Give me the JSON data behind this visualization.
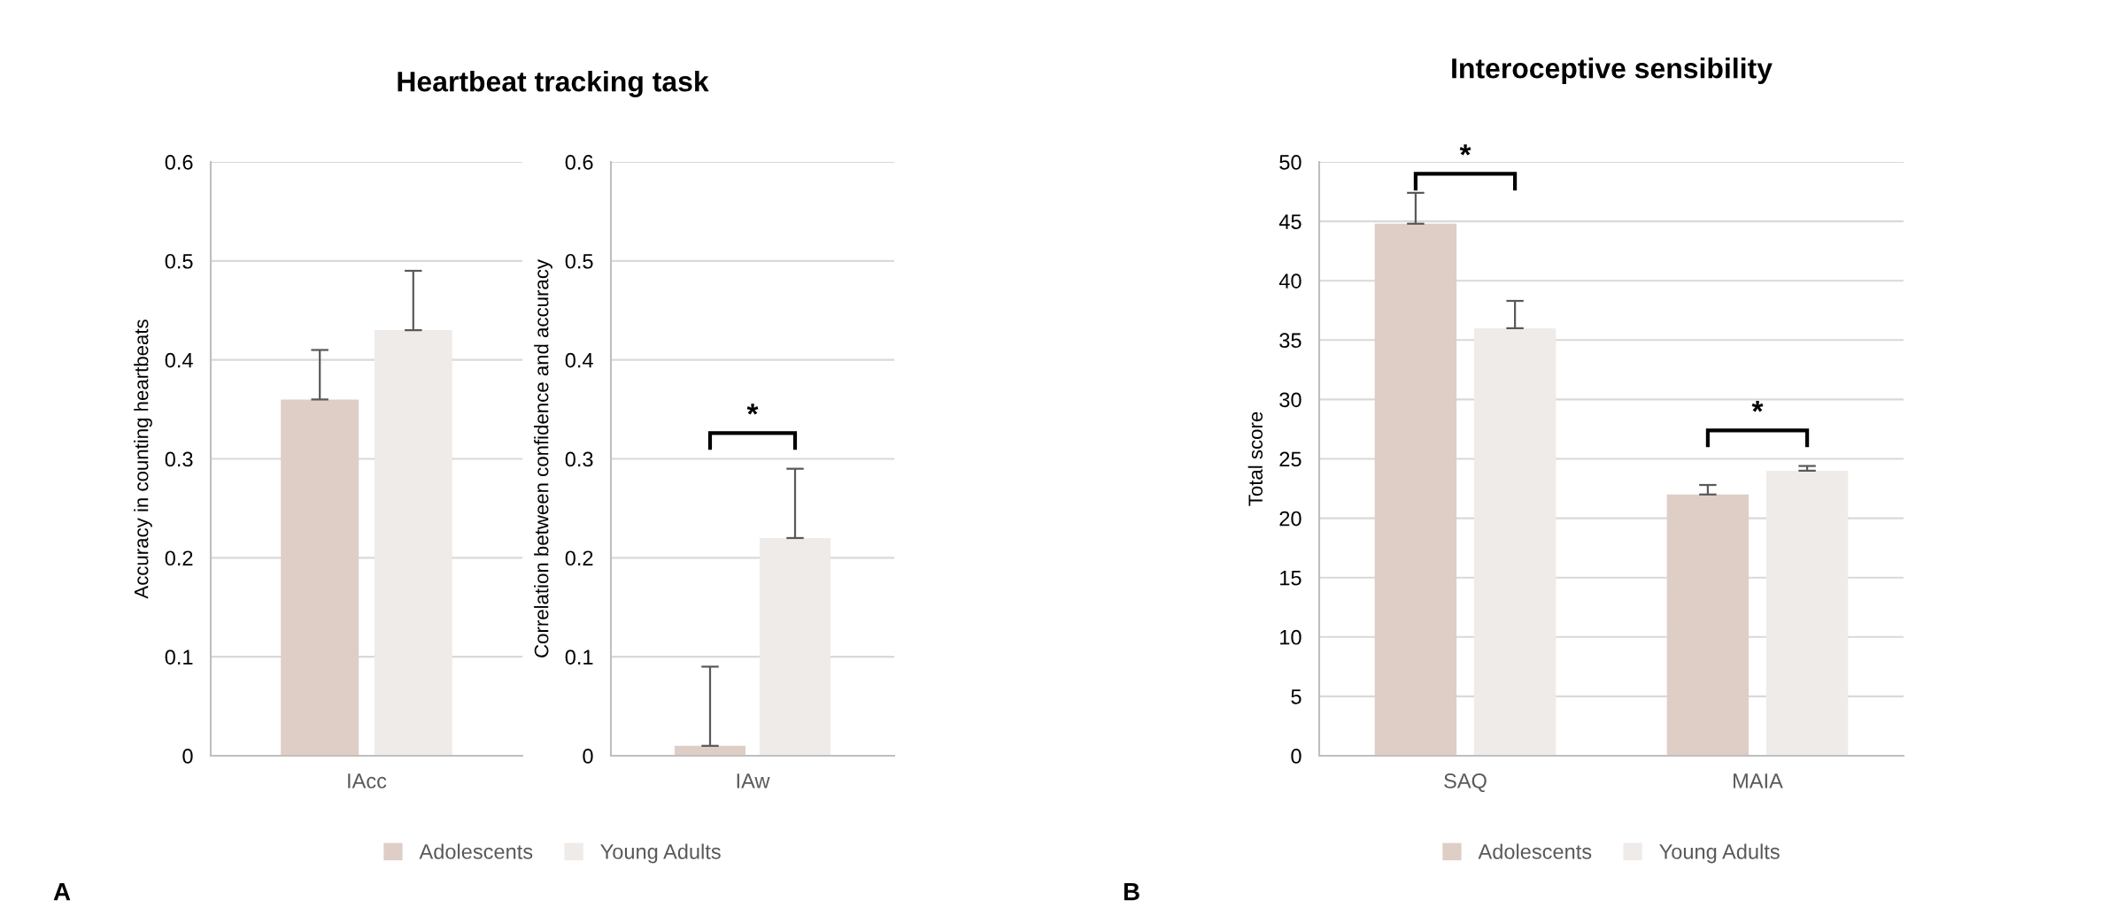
{
  "chart_data": [
    {
      "type": "bar",
      "title": "Heartbeat tracking task",
      "ylabel": "Accuracy in counting heartbeats",
      "categories": [
        "IAcc"
      ],
      "ylim": [
        0,
        0.6
      ],
      "yticks": [
        0,
        0.1,
        0.2,
        0.3,
        0.4,
        0.5,
        0.6
      ],
      "grid": "y",
      "legend": "bottom",
      "series": [
        {
          "name": "Adolescents",
          "color": "#dfcec6",
          "values": [
            0.36
          ],
          "errors": [
            [
              0.36,
              0.41
            ]
          ]
        },
        {
          "name": "Young Adults",
          "color": "#efebe8",
          "values": [
            0.43
          ],
          "errors": [
            [
              0.43,
              0.49
            ]
          ]
        }
      ]
    },
    {
      "type": "bar",
      "ylabel": "Correlation between confidence and accuracy",
      "categories": [
        "IAw"
      ],
      "ylim": [
        0,
        0.6
      ],
      "yticks": [
        0,
        0.1,
        0.2,
        0.3,
        0.4,
        0.5,
        0.6
      ],
      "grid": "y",
      "series": [
        {
          "color": "#dfcec6",
          "values": [
            0.01
          ],
          "errors": [
            [
              0.01,
              0.09
            ]
          ]
        },
        {
          "color": "#efebe8",
          "values": [
            0.22
          ],
          "errors": [
            [
              0.22,
              0.29
            ]
          ]
        }
      ],
      "annotations": [
        "*",
        "A"
      ]
    },
    {
      "type": "bar",
      "title": "Interoceptive sensibility",
      "ylabel": "Total score",
      "categories": [
        "SAQ",
        "MAIA"
      ],
      "ylim": [
        0,
        50
      ],
      "yticks": [
        0,
        5,
        10,
        15,
        20,
        25,
        30,
        35,
        40,
        45,
        50
      ],
      "grid": "y",
      "legend": "bottom",
      "series": [
        {
          "name": "Adolescents",
          "color": "#dfcec6",
          "values": [
            44.8,
            22
          ],
          "errors": [
            [
              44.8,
              47.4
            ],
            [
              22,
              22.8
            ]
          ]
        },
        {
          "name": "Young Adults",
          "color": "#efebe8",
          "values": [
            36,
            24
          ],
          "errors": [
            [
              36,
              38.3
            ],
            [
              24,
              24.4
            ]
          ]
        }
      ],
      "annotations": [
        "*",
        "*",
        "B"
      ]
    }
  ]
}
